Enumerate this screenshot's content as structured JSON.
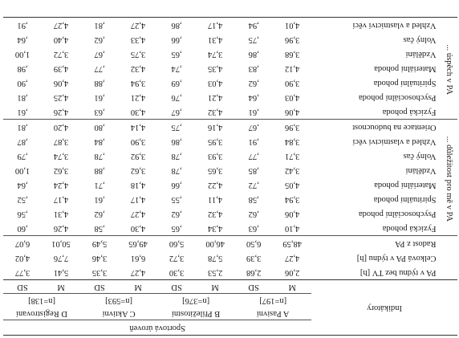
{
  "header": {
    "span_title": "Sportová úroveň",
    "indicators_label": "Indikátory",
    "groups": [
      {
        "label": "A Pasivní",
        "n": "[n=197]"
      },
      {
        "label": "B Příležitostní",
        "n": "[n=376]"
      },
      {
        "label": "C Aktivní",
        "n": "[n=593]"
      },
      {
        "label": "D Registrovaní",
        "n": "[n=138]"
      }
    ],
    "m_label": "M",
    "sd_label": "SD"
  },
  "sections": [
    {
      "group_label": "",
      "rows": [
        {
          "label": "PA v týdnu bez TV [h]",
          "values": [
            "2,06",
            "2,68",
            "2,53",
            "3,30",
            "4,27",
            "3,35",
            "5,41",
            "3,77"
          ]
        },
        {
          "label": "Celková PA v týdnu [h]",
          "values": [
            "4,27",
            "3,39",
            "5,78",
            "3,72",
            "6,61",
            "3,46",
            "7,76",
            "4,02"
          ]
        },
        {
          "label": "Radost z PA",
          "values": [
            "48,59",
            "6,50",
            "46,00",
            "5,60",
            "49,65",
            "5,49",
            "50,01",
            "6,07"
          ]
        }
      ]
    },
    {
      "group_label": "... důležitost pro mě v PA",
      "rows": [
        {
          "label": "Fyzická pohoda",
          "values": [
            "4,10",
            ",63",
            "4,34",
            ",65",
            "4,30",
            ",58",
            "4,26",
            ",60"
          ]
        },
        {
          "label": "Psychosociální pohoda",
          "values": [
            "4,06",
            ",62",
            "4,32",
            ",62",
            "4,27",
            ",62",
            "4,31",
            ",56"
          ]
        },
        {
          "label": "Spirituální pohoda",
          "values": [
            "3,94",
            ",58",
            "4,11",
            ",55",
            "4,17",
            ",61",
            "4,17",
            ",52"
          ]
        },
        {
          "label": "Materiální pohoda",
          "values": [
            "4,05",
            ",72",
            "4,22",
            ",66",
            "4,18",
            ",71",
            "4,24",
            ",64"
          ]
        },
        {
          "label": "Vzdělání",
          "values": [
            "3,42",
            ",85",
            "3,65",
            ",78",
            "3,62",
            ",88",
            "3,62",
            "1,00"
          ]
        },
        {
          "label": "Volný čas",
          "values": [
            "3,71",
            ",77",
            "3,93",
            ",78",
            "3,92",
            ",78",
            "3,74",
            ",79"
          ]
        },
        {
          "label": "Vzhled a vlastnictví věcí",
          "values": [
            "3,84",
            ",91",
            "3,95",
            ",86",
            "3,90",
            ",84",
            "3,87",
            ",87"
          ]
        },
        {
          "label": "Orientace na budoucnost",
          "values": [
            "3,96",
            ",67",
            "4,16",
            ",75",
            "4,14",
            ",80",
            "4,20",
            ",81"
          ]
        }
      ]
    },
    {
      "group_label": "... úspěch v PA",
      "rows": [
        {
          "label": "Fyzická pohoda",
          "values": [
            "4,06",
            ",61",
            "4,32",
            ",67",
            "4,30",
            ",63",
            "4,26",
            ",61"
          ]
        },
        {
          "label": "Psychosociální pohoda",
          "values": [
            "4,03",
            ",64",
            "4,21",
            ",76",
            "4,21",
            ",61",
            "4,25",
            ",81"
          ]
        },
        {
          "label": "Spirituální pohoda",
          "values": [
            "3,90",
            ",62",
            "4,03",
            ",69",
            "3,94",
            ",88",
            "4,06",
            ",90"
          ]
        },
        {
          "label": "Materiální pohoda",
          "values": [
            "4,12",
            ",83",
            "4,35",
            ",74",
            "4,32",
            ",77",
            "4,39",
            ",98"
          ]
        },
        {
          "label": "Vzdělání",
          "values": [
            "3,68",
            ",86",
            "3,74",
            ",65",
            "3,75",
            ",67",
            "3,72",
            "1,00"
          ]
        },
        {
          "label": "Volný čas",
          "values": [
            "3,96",
            ",75",
            "4,31",
            ",66",
            "4,33",
            ",62",
            "4,40",
            ",64"
          ]
        },
        {
          "label": "Vzhled a vlastnictví věcí",
          "values": [
            "4,01",
            ",94",
            "4,17",
            ",86",
            "4,27",
            ",81",
            "4,27",
            ",91"
          ]
        }
      ]
    }
  ]
}
